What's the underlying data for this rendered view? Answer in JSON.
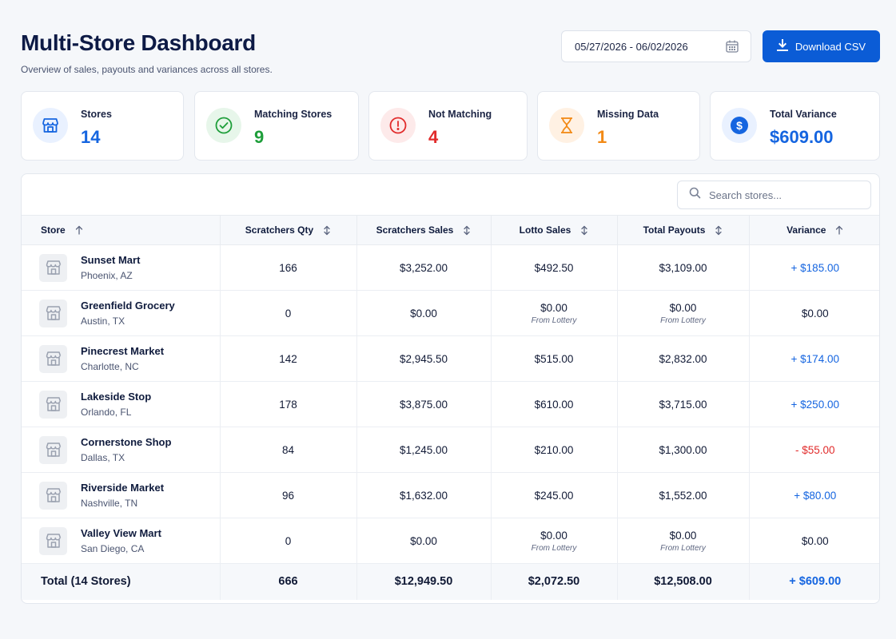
{
  "header": {
    "title": "Multi-Store Dashboard",
    "subtitle": "Overview of sales, payouts and variances across all stores.",
    "date_range": "05/27/2026 - 06/02/2026",
    "download_label": "Download CSV"
  },
  "stats": [
    {
      "label": "Stores",
      "value": "14",
      "icon": "store-icon",
      "color": "#1565e0",
      "bg": "#e9f1ff"
    },
    {
      "label": "Matching Stores",
      "value": "9",
      "icon": "check-circle-icon",
      "color": "#1e9e3a",
      "bg": "#e7f6ea"
    },
    {
      "label": "Not Matching",
      "value": "4",
      "icon": "alert-circle-icon",
      "color": "#e12b2b",
      "bg": "#fdeaea"
    },
    {
      "label": "Missing Data",
      "value": "1",
      "icon": "hourglass-icon",
      "color": "#f28a16",
      "bg": "#fff1e3"
    },
    {
      "label": "Total Variance",
      "value": "$609.00",
      "icon": "dollar-icon",
      "color": "#1565e0",
      "bg": "#e9f1ff"
    }
  ],
  "search": {
    "placeholder": "Search stores..."
  },
  "table": {
    "columns": [
      "Store",
      "Scratchers Qty",
      "Scratchers Sales",
      "Lotto Sales",
      "Total Payouts",
      "Variance"
    ],
    "rows": [
      {
        "name": "Sunset Mart",
        "location": "Phoenix, AZ",
        "qty": "166",
        "scratchers_sales": "$3,252.00",
        "lotto_sales": "$492.50",
        "lotto_note": "",
        "payouts": "$3,109.00",
        "payouts_note": "",
        "variance": "+ $185.00",
        "variance_type": "pos"
      },
      {
        "name": "Greenfield Grocery",
        "location": "Austin, TX",
        "qty": "0",
        "scratchers_sales": "$0.00",
        "lotto_sales": "$0.00",
        "lotto_note": "From Lottery",
        "payouts": "$0.00",
        "payouts_note": "From Lottery",
        "variance": "$0.00",
        "variance_type": "zero"
      },
      {
        "name": "Pinecrest Market",
        "location": "Charlotte, NC",
        "qty": "142",
        "scratchers_sales": "$2,945.50",
        "lotto_sales": "$515.00",
        "lotto_note": "",
        "payouts": "$2,832.00",
        "payouts_note": "",
        "variance": "+ $174.00",
        "variance_type": "pos"
      },
      {
        "name": "Lakeside Stop",
        "location": "Orlando, FL",
        "qty": "178",
        "scratchers_sales": "$3,875.00",
        "lotto_sales": "$610.00",
        "lotto_note": "",
        "payouts": "$3,715.00",
        "payouts_note": "",
        "variance": "+ $250.00",
        "variance_type": "pos"
      },
      {
        "name": "Cornerstone Shop",
        "location": "Dallas, TX",
        "qty": "84",
        "scratchers_sales": "$1,245.00",
        "lotto_sales": "$210.00",
        "lotto_note": "",
        "payouts": "$1,300.00",
        "payouts_note": "",
        "variance": "- $55.00",
        "variance_type": "neg"
      },
      {
        "name": "Riverside Market",
        "location": "Nashville, TN",
        "qty": "96",
        "scratchers_sales": "$1,632.00",
        "lotto_sales": "$245.00",
        "lotto_note": "",
        "payouts": "$1,552.00",
        "payouts_note": "",
        "variance": "+ $80.00",
        "variance_type": "pos"
      },
      {
        "name": "Valley View Mart",
        "location": "San Diego, CA",
        "qty": "0",
        "scratchers_sales": "$0.00",
        "lotto_sales": "$0.00",
        "lotto_note": "From Lottery",
        "payouts": "$0.00",
        "payouts_note": "From Lottery",
        "variance": "$0.00",
        "variance_type": "zero"
      }
    ],
    "total": {
      "label": "Total (14 Stores)",
      "qty": "666",
      "scratchers_sales": "$12,949.50",
      "lotto_sales": "$2,072.50",
      "payouts": "$12,508.00",
      "variance": "+ $609.00"
    }
  }
}
